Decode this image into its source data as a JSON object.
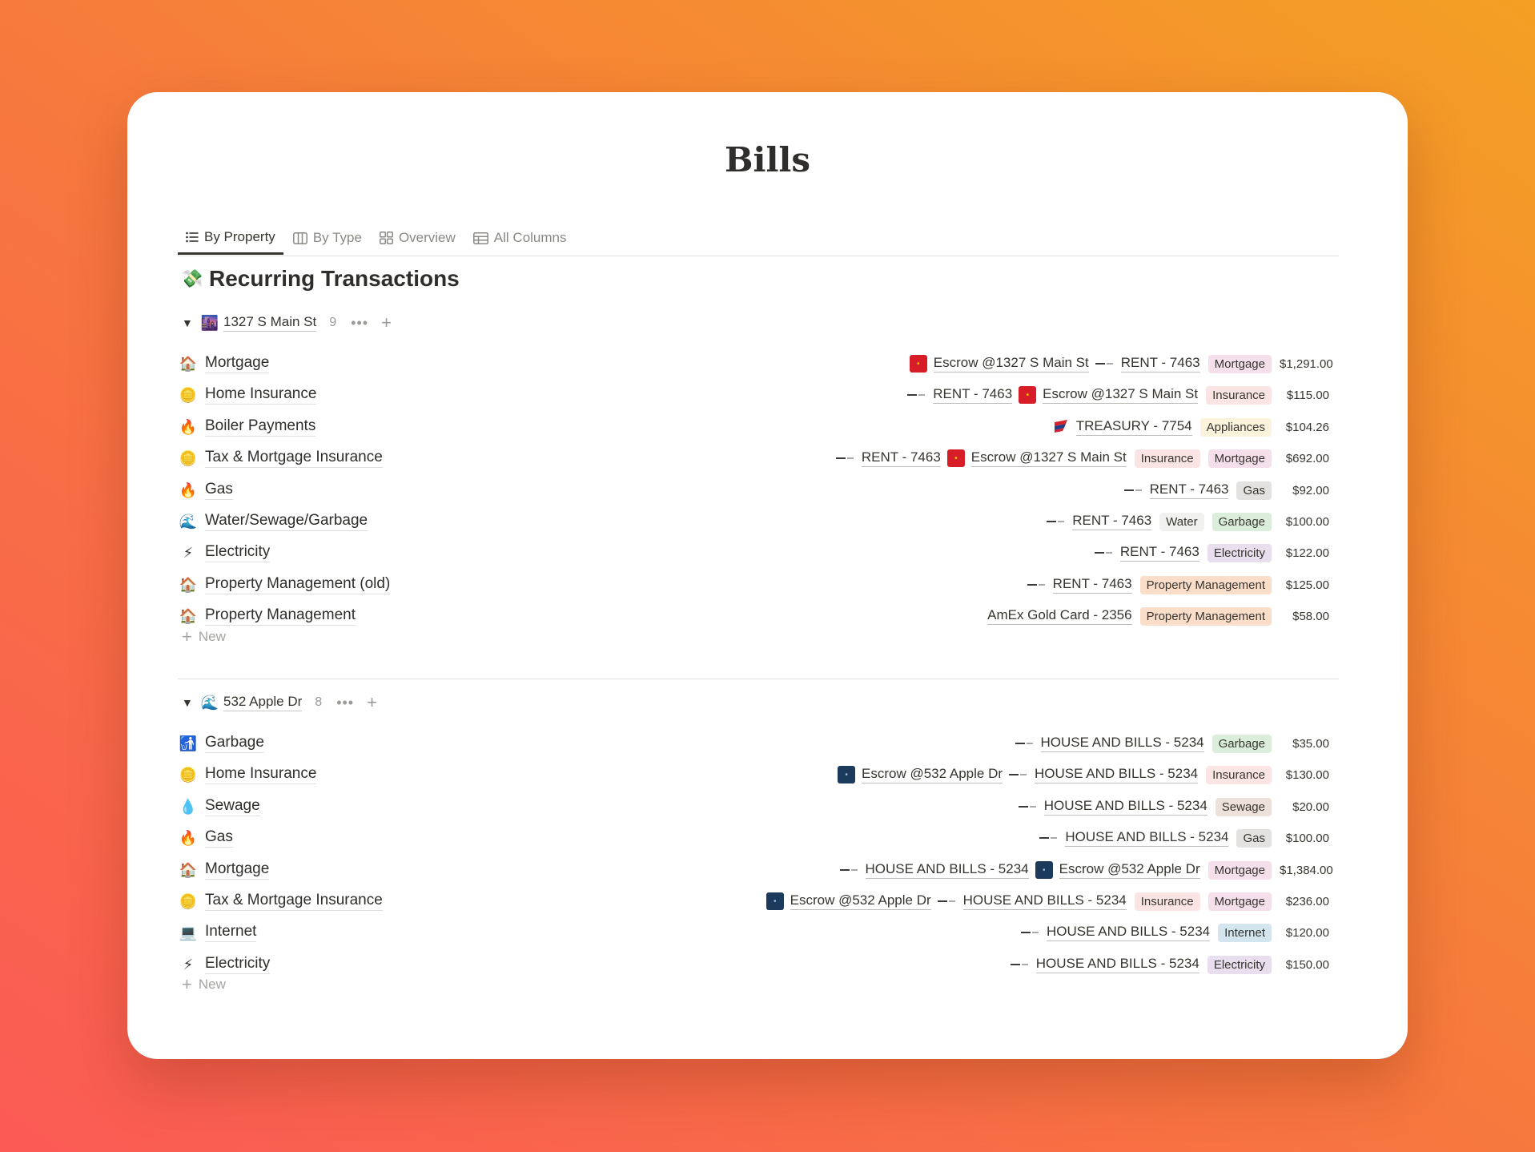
{
  "page": {
    "title": "Bills"
  },
  "tabs": [
    {
      "label": "By Property",
      "icon": "list-icon",
      "active": true
    },
    {
      "label": "By Type",
      "icon": "board-icon",
      "active": false
    },
    {
      "label": "Overview",
      "icon": "gallery-icon",
      "active": false
    },
    {
      "label": "All Columns",
      "icon": "table-icon",
      "active": false
    }
  ],
  "database": {
    "title": "Recurring Transactions",
    "icon": "money-icon"
  },
  "tag_colors": {
    "Mortgage": "#f4dfeb",
    "Insurance": "#fbe4e4",
    "Appliances": "#fbf3db",
    "Gas": "#e3e2e0",
    "Water": "#f1f1ef",
    "Garbage": "#dbeddb",
    "Electricity": "#e8deee",
    "Property Management": "#fadec9",
    "Sewage": "#eee0da",
    "Internet": "#d3e5ef"
  },
  "groups": [
    {
      "name": "1327 S Main St",
      "icon": "city-icon",
      "count": "9",
      "more": "•••",
      "add": "+",
      "new_label": "New",
      "rows": [
        {
          "icon": "house-icon",
          "emoji": "🏠",
          "name": "Mortgage",
          "accounts": [
            {
              "logo": "wells-fargo-logo",
              "text": "Escrow @1327 S Main St"
            },
            {
              "logo": "card-logo",
              "text": "RENT - 7463"
            }
          ],
          "tags": [
            "Mortgage"
          ],
          "amount": "$1,291.00"
        },
        {
          "icon": "coin-icon",
          "emoji": "🪙",
          "name": "Home Insurance",
          "accounts": [
            {
              "logo": "card-logo",
              "text": "RENT - 7463"
            },
            {
              "logo": "wells-fargo-logo",
              "text": "Escrow @1327 S Main St"
            }
          ],
          "tags": [
            "Insurance"
          ],
          "amount": "$115.00"
        },
        {
          "icon": "fire-icon",
          "emoji": "🔥",
          "name": "Boiler Payments",
          "accounts": [
            {
              "logo": "flag-logo",
              "text": "TREASURY - 7754"
            }
          ],
          "tags": [
            "Appliances"
          ],
          "amount": "$104.26"
        },
        {
          "icon": "coin-icon",
          "emoji": "🪙",
          "name": "Tax & Mortgage Insurance",
          "accounts": [
            {
              "logo": "card-logo",
              "text": "RENT - 7463"
            },
            {
              "logo": "wells-fargo-logo",
              "text": "Escrow @1327 S Main St"
            }
          ],
          "tags": [
            "Insurance",
            "Mortgage"
          ],
          "amount": "$692.00"
        },
        {
          "icon": "fire-icon",
          "emoji": "🔥",
          "name": "Gas",
          "accounts": [
            {
              "logo": "card-logo",
              "text": "RENT - 7463"
            }
          ],
          "tags": [
            "Gas"
          ],
          "amount": "$92.00"
        },
        {
          "icon": "wave-icon",
          "emoji": "🌊",
          "name": "Water/Sewage/Garbage",
          "accounts": [
            {
              "logo": "card-logo",
              "text": "RENT - 7463"
            }
          ],
          "tags": [
            "Water",
            "Garbage"
          ],
          "amount": "$100.00"
        },
        {
          "icon": "lightning-icon",
          "emoji": "⚡",
          "name": "Electricity",
          "accounts": [
            {
              "logo": "card-logo",
              "text": "RENT - 7463"
            }
          ],
          "tags": [
            "Electricity"
          ],
          "amount": "$122.00"
        },
        {
          "icon": "house-icon",
          "emoji": "🏠",
          "name": "Property Management (old)",
          "accounts": [
            {
              "logo": "card-logo",
              "text": "RENT - 7463"
            }
          ],
          "tags": [
            "Property Management"
          ],
          "amount": "$125.00"
        },
        {
          "icon": "house-icon",
          "emoji": "🏠",
          "name": "Property Management",
          "accounts": [
            {
              "logo": "none",
              "text": "AmEx Gold Card - 2356"
            }
          ],
          "tags": [
            "Property Management"
          ],
          "amount": "$58.00"
        }
      ]
    },
    {
      "name": "532 Apple Dr",
      "icon": "wave-icon",
      "count": "8",
      "more": "•••",
      "add": "+",
      "new_label": "New",
      "rows": [
        {
          "icon": "trash-icon",
          "emoji": "🚮",
          "name": "Garbage",
          "accounts": [
            {
              "logo": "card-logo",
              "text": "HOUSE AND BILLS - 5234"
            }
          ],
          "tags": [
            "Garbage"
          ],
          "amount": "$35.00"
        },
        {
          "icon": "coin-icon",
          "emoji": "🪙",
          "name": "Home Insurance",
          "accounts": [
            {
              "logo": "chase-logo",
              "text": "Escrow @532 Apple Dr"
            },
            {
              "logo": "card-logo",
              "text": "HOUSE AND BILLS - 5234"
            }
          ],
          "tags": [
            "Insurance"
          ],
          "amount": "$130.00"
        },
        {
          "icon": "droplet-icon",
          "emoji": "💧",
          "name": "Sewage",
          "accounts": [
            {
              "logo": "card-logo",
              "text": "HOUSE AND BILLS - 5234"
            }
          ],
          "tags": [
            "Sewage"
          ],
          "amount": "$20.00"
        },
        {
          "icon": "fire-icon",
          "emoji": "🔥",
          "name": "Gas",
          "accounts": [
            {
              "logo": "card-logo",
              "text": "HOUSE AND BILLS - 5234"
            }
          ],
          "tags": [
            "Gas"
          ],
          "amount": "$100.00"
        },
        {
          "icon": "house-icon",
          "emoji": "🏠",
          "name": "Mortgage",
          "accounts": [
            {
              "logo": "card-logo",
              "text": "HOUSE AND BILLS - 5234"
            },
            {
              "logo": "chase-logo",
              "text": "Escrow @532 Apple Dr"
            }
          ],
          "tags": [
            "Mortgage"
          ],
          "amount": "$1,384.00"
        },
        {
          "icon": "coin-icon",
          "emoji": "🪙",
          "name": "Tax & Mortgage Insurance",
          "accounts": [
            {
              "logo": "chase-logo",
              "text": "Escrow @532 Apple Dr"
            },
            {
              "logo": "card-logo",
              "text": "HOUSE AND BILLS - 5234"
            }
          ],
          "tags": [
            "Insurance",
            "Mortgage"
          ],
          "amount": "$236.00"
        },
        {
          "icon": "laptop-icon",
          "emoji": "💻",
          "name": "Internet",
          "accounts": [
            {
              "logo": "card-logo",
              "text": "HOUSE AND BILLS - 5234"
            }
          ],
          "tags": [
            "Internet"
          ],
          "amount": "$120.00"
        },
        {
          "icon": "lightning-icon",
          "emoji": "⚡",
          "name": "Electricity",
          "accounts": [
            {
              "logo": "card-logo",
              "text": "HOUSE AND BILLS - 5234"
            }
          ],
          "tags": [
            "Electricity"
          ],
          "amount": "$150.00"
        }
      ]
    }
  ]
}
